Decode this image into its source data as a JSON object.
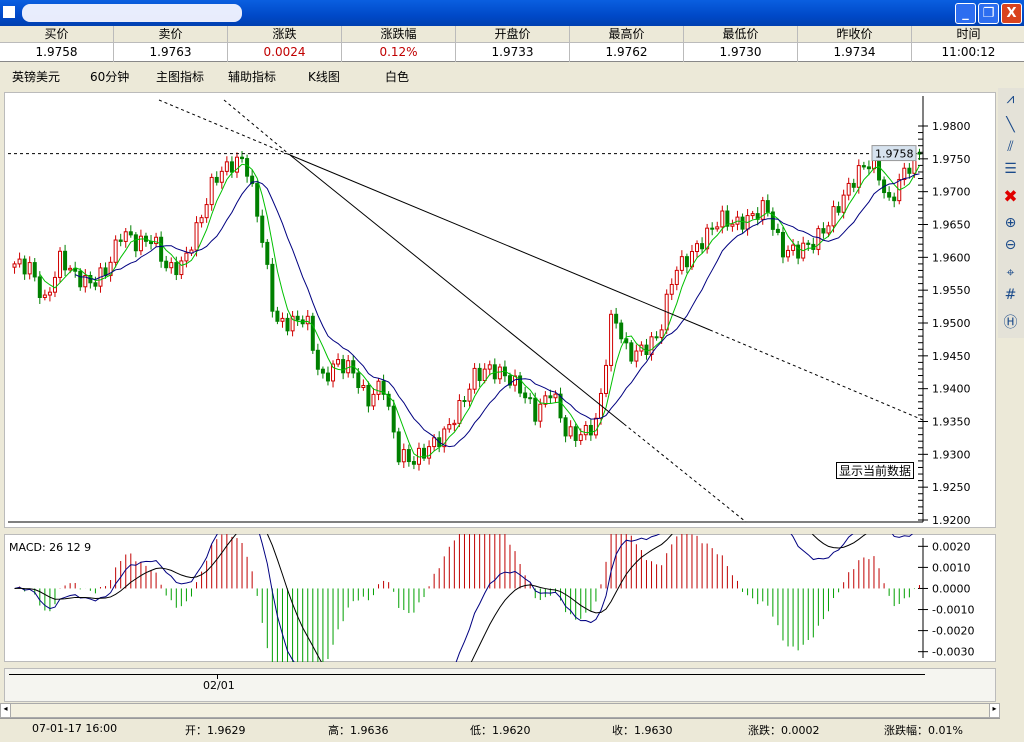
{
  "window": {
    "title": "",
    "buttons": {
      "minimize": "_",
      "restore": "❐",
      "close": "X"
    }
  },
  "quote": {
    "headers": [
      "买价",
      "卖价",
      "涨跌",
      "涨跌幅",
      "开盘价",
      "最高价",
      "最低价",
      "昨收价",
      "时间"
    ],
    "values": [
      "1.9758",
      "1.9763",
      "0.0024",
      "0.12%",
      "1.9733",
      "1.9762",
      "1.9730",
      "1.9734",
      "11:00:12"
    ],
    "red_columns": [
      2,
      3
    ]
  },
  "menu": [
    "英镑美元",
    "60分钟",
    "主图指标",
    "辅助指标",
    "K线图",
    "白色"
  ],
  "main_chart": {
    "y_ticks": [
      "1.9800",
      "1.9750",
      "1.9700",
      "1.9650",
      "1.9600",
      "1.9550",
      "1.9500",
      "1.9450",
      "1.9400",
      "1.9350",
      "1.9300",
      "1.9250",
      "1.9200"
    ],
    "ylim": [
      1.92,
      1.98
    ],
    "current_price": "1.9758",
    "closes": [
      1.959,
      1.9585,
      1.953,
      1.96,
      1.957,
      1.956,
      1.958,
      1.964,
      1.962,
      1.963,
      1.958,
      1.959,
      1.965,
      1.972,
      1.974,
      1.975,
      1.965,
      1.95,
      1.95,
      1.951,
      1.941,
      1.944,
      1.943,
      1.938,
      1.941,
      1.93,
      1.929,
      1.931,
      1.933,
      1.937,
      1.942,
      1.943,
      1.942,
      1.94,
      1.936,
      1.94,
      1.933,
      1.933,
      1.935,
      1.952,
      1.945,
      1.946,
      1.948,
      1.958,
      1.96,
      1.963,
      1.966,
      1.965,
      1.966,
      1.968,
      1.961,
      1.961,
      1.962,
      1.965,
      1.969,
      1.973,
      1.975,
      1.968,
      1.973,
      1.9758
    ],
    "colors": {
      "up": "#d00000",
      "down": "#008000",
      "ma_fast": "#00c000",
      "ma_slow": "#000080",
      "trend": "#000000"
    }
  },
  "macd": {
    "label": "MACD: 26 12 9",
    "y_ticks": [
      "0.0020",
      "0.0010",
      "0.0000",
      "-0.0010",
      "-0.0020",
      "-0.0030"
    ],
    "ylim": [
      -0.0033,
      0.0023
    ]
  },
  "x_axis": {
    "label": "02/01"
  },
  "tooltip": "显示当前数据",
  "status": {
    "time": "07-01-17 16:00",
    "open": "开：1.9629",
    "high": "高：1.9636",
    "low": "低：1.9620",
    "close": "收：1.9630",
    "change": "涨跌：0.0002",
    "change_pct": "涨跌幅：0.01%"
  },
  "toolbar_icons": [
    "line-chart-icon",
    "trend-line-icon",
    "parallel-line-icon",
    "horizontal-line-icon",
    "delete-icon",
    "zoom-in-icon",
    "zoom-out-icon",
    "crosshair-icon",
    "grid-icon",
    "hl-icon"
  ]
}
